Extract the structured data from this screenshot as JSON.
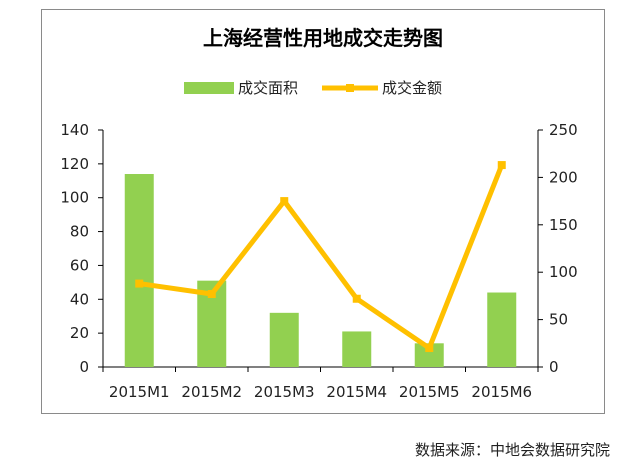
{
  "chart_data": {
    "type": "bar",
    "title": "上海经营性用地成交走势图",
    "categories": [
      "2015M1",
      "2015M2",
      "2015M3",
      "2015M4",
      "2015M5",
      "2015M6"
    ],
    "series": [
      {
        "name": "成交面积",
        "type": "bar",
        "axis": "left",
        "color": "#92d050",
        "values": [
          114,
          51,
          32,
          21,
          14,
          44
        ]
      },
      {
        "name": "成交金额",
        "type": "line",
        "axis": "right",
        "color": "#ffc000",
        "values": [
          88,
          77,
          175,
          72,
          20,
          213
        ]
      }
    ],
    "y_left": {
      "range": [
        0,
        140
      ],
      "ticks": [
        "0",
        "20",
        "40",
        "60",
        "80",
        "100",
        "120",
        "140"
      ]
    },
    "y_right": {
      "range": [
        0,
        250
      ],
      "ticks": [
        "0",
        "50",
        "100",
        "150",
        "200",
        "250"
      ]
    },
    "legend_position": "top-center",
    "grid": false
  },
  "source_text": "数据来源：中地会数据研究院"
}
